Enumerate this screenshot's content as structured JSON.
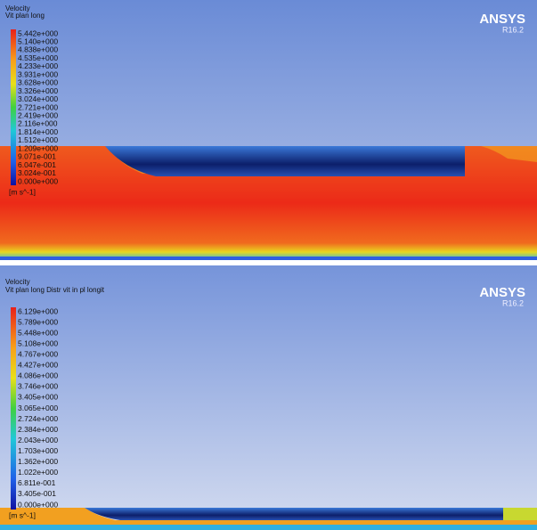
{
  "panels": [
    {
      "title": "Velocity",
      "subtitle": "Vit plan long",
      "levels": [
        "5.442e+000",
        "5.140e+000",
        "4.838e+000",
        "4.535e+000",
        "4.233e+000",
        "3.931e+000",
        "3.628e+000",
        "3.326e+000",
        "3.024e+000",
        "2.721e+000",
        "2.419e+000",
        "2.116e+000",
        "1.814e+000",
        "1.512e+000",
        "1.209e+000",
        "9.071e-001",
        "6.047e-001",
        "3.024e-001",
        "0.000e+000"
      ],
      "unit": "[m s^-1]",
      "logo": "ANSYS",
      "version": "R16.2"
    },
    {
      "title": "Velocity",
      "subtitle": "Vit plan long Distr vit in pl longit",
      "levels": [
        "6.129e+000",
        "5.789e+000",
        "5.448e+000",
        "5.108e+000",
        "4.767e+000",
        "4.427e+000",
        "4.086e+000",
        "3.746e+000",
        "3.405e+000",
        "3.065e+000",
        "2.724e+000",
        "2.384e+000",
        "2.043e+000",
        "1.703e+000",
        "1.362e+000",
        "1.022e+000",
        "6.811e-001",
        "3.405e-001",
        "0.000e+000"
      ],
      "unit": "[m s^-1]",
      "logo": "ANSYS",
      "version": "R16.2"
    }
  ]
}
